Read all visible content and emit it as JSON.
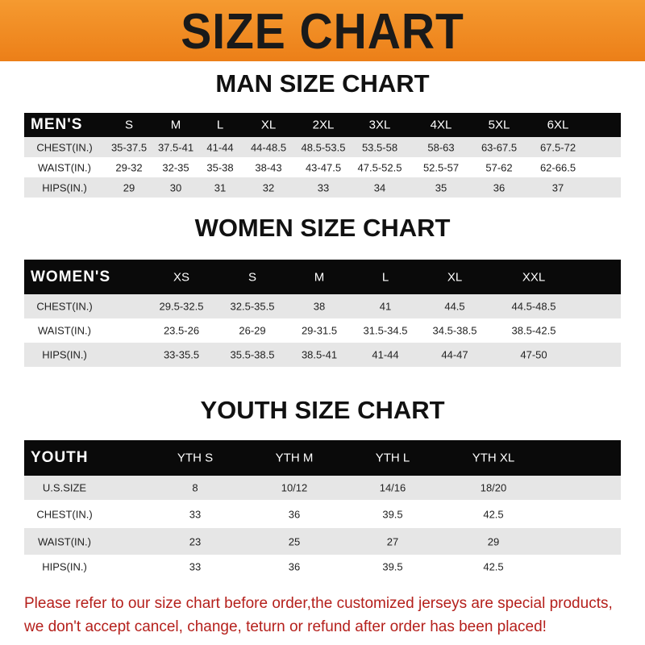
{
  "banner": {
    "title": "SIZE CHART",
    "color": "#ee8520"
  },
  "men": {
    "title": "MAN SIZE CHART",
    "header": [
      "MEN'S",
      "S",
      "M",
      "L",
      "XL",
      "2XL",
      "3XL",
      "4XL",
      "5XL",
      "6XL"
    ],
    "rows": [
      [
        "CHEST(IN.)",
        "35-37.5",
        "37.5-41",
        "41-44",
        "44-48.5",
        "48.5-53.5",
        "53.5-58",
        "58-63",
        "63-67.5",
        "67.5-72"
      ],
      [
        "WAIST(IN.)",
        "29-32",
        "32-35",
        "35-38",
        "38-43",
        "43-47.5",
        "47.5-52.5",
        "52.5-57",
        "57-62",
        "62-66.5"
      ],
      [
        "HIPS(IN.)",
        "29",
        "30",
        "31",
        "32",
        "33",
        "34",
        "35",
        "36",
        "37"
      ]
    ]
  },
  "women": {
    "title": "WOMEN SIZE CHART",
    "header": [
      "WOMEN'S",
      "XS",
      "S",
      "M",
      "L",
      "XL",
      "XXL"
    ],
    "rows": [
      [
        "CHEST(IN.)",
        "29.5-32.5",
        "32.5-35.5",
        "38",
        "41",
        "44.5",
        "44.5-48.5"
      ],
      [
        "WAIST(IN.)",
        "23.5-26",
        "26-29",
        "29-31.5",
        "31.5-34.5",
        "34.5-38.5",
        "38.5-42.5"
      ],
      [
        "HIPS(IN.)",
        "33-35.5",
        "35.5-38.5",
        "38.5-41",
        "41-44",
        "44-47",
        "47-50"
      ]
    ]
  },
  "youth": {
    "title": "YOUTH SIZE CHART",
    "header": [
      "YOUTH",
      "YTH S",
      "YTH M",
      "YTH L",
      "YTH XL"
    ],
    "rows": [
      [
        "U.S.SIZE",
        "8",
        "10/12",
        "14/16",
        "18/20"
      ],
      [
        "CHEST(IN.)",
        "33",
        "36",
        "39.5",
        "42.5"
      ],
      [
        "WAIST(IN.)",
        "23",
        "25",
        "27",
        "29"
      ],
      [
        "HIPS(IN.)",
        "33",
        "36",
        "39.5",
        "42.5"
      ]
    ]
  },
  "footer": {
    "line1": "Please refer to our size chart before order,the customized jerseys are special products,",
    "line2": "we don't accept cancel, change, teturn or refund after order has been placed!",
    "color": "#b5201c"
  }
}
